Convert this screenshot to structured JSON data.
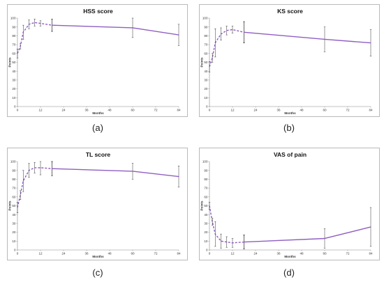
{
  "colors": {
    "series": "#8f5ec2",
    "error_bar": "#333333",
    "axis": "#888888"
  },
  "captions": [
    "(a)",
    "(b)",
    "(c)",
    "(d)"
  ],
  "chart_data": [
    {
      "type": "line",
      "title": "HSS score",
      "xlabel": "Months",
      "ylabel": "Points",
      "xlim": [
        0,
        84
      ],
      "ylim": [
        0,
        100
      ],
      "xticks": [
        0,
        12,
        24,
        36,
        48,
        60,
        72,
        84
      ],
      "yticks": [
        0,
        10,
        20,
        30,
        40,
        50,
        60,
        70,
        80,
        90,
        100
      ],
      "grid": false,
      "series": [
        {
          "style": "dashed",
          "x": [
            0,
            1.5,
            3,
            6,
            9,
            12,
            18
          ],
          "y": [
            60,
            68,
            84,
            93,
            95,
            94,
            92
          ],
          "err": [
            5,
            3,
            8,
            5,
            4,
            3,
            7
          ]
        },
        {
          "style": "solid",
          "x": [
            18,
            60,
            84
          ],
          "y": [
            92,
            89,
            81
          ],
          "err": [
            7,
            11,
            12
          ]
        }
      ]
    },
    {
      "type": "line",
      "title": "KS score",
      "xlabel": "Months",
      "ylabel": "Points",
      "xlim": [
        0,
        84
      ],
      "ylim": [
        0,
        100
      ],
      "xticks": [
        0,
        12,
        24,
        36,
        48,
        60,
        72,
        84
      ],
      "yticks": [
        0,
        10,
        20,
        30,
        40,
        50,
        60,
        70,
        80,
        90,
        100
      ],
      "grid": false,
      "series": [
        {
          "style": "dashed",
          "x": [
            0,
            1.5,
            3,
            6,
            9,
            12,
            18
          ],
          "y": [
            45,
            55,
            72,
            82,
            86,
            87,
            84
          ],
          "err": [
            6,
            5,
            16,
            7,
            5,
            4,
            12
          ]
        },
        {
          "style": "solid",
          "x": [
            18,
            60,
            84
          ],
          "y": [
            84,
            76,
            72
          ],
          "err": [
            12,
            14,
            15
          ]
        }
      ]
    },
    {
      "type": "line",
      "title": "TL score",
      "xlabel": "Months",
      "ylabel": "Points",
      "xlim": [
        0,
        84
      ],
      "ylim": [
        0,
        100
      ],
      "xticks": [
        0,
        12,
        24,
        36,
        48,
        60,
        72,
        84
      ],
      "yticks": [
        0,
        10,
        20,
        30,
        40,
        50,
        60,
        70,
        80,
        90,
        100
      ],
      "grid": false,
      "series": [
        {
          "style": "dashed",
          "x": [
            0,
            1.5,
            3,
            6,
            9,
            12,
            18
          ],
          "y": [
            48,
            62,
            78,
            90,
            93,
            93,
            92
          ],
          "err": [
            6,
            5,
            12,
            8,
            6,
            8,
            8
          ]
        },
        {
          "style": "solid",
          "x": [
            18,
            60,
            84
          ],
          "y": [
            92,
            89,
            83
          ],
          "err": [
            8,
            9,
            12
          ]
        }
      ]
    },
    {
      "type": "line",
      "title": "VAS of pain",
      "xlabel": "Months",
      "ylabel": "Points",
      "xlim": [
        0,
        84
      ],
      "ylim": [
        0,
        100
      ],
      "xticks": [
        0,
        12,
        24,
        36,
        48,
        60,
        72,
        84
      ],
      "yticks": [
        0,
        10,
        20,
        30,
        40,
        50,
        60,
        70,
        80,
        90,
        100
      ],
      "grid": false,
      "series": [
        {
          "style": "dashed",
          "x": [
            0,
            1.5,
            3,
            6,
            9,
            12,
            18
          ],
          "y": [
            50,
            32,
            18,
            10,
            9,
            8,
            9
          ],
          "err": [
            4,
            4,
            14,
            8,
            6,
            5,
            8
          ]
        },
        {
          "style": "solid",
          "x": [
            18,
            60,
            84
          ],
          "y": [
            9,
            13,
            26
          ],
          "err": [
            8,
            11,
            22
          ]
        }
      ]
    }
  ]
}
